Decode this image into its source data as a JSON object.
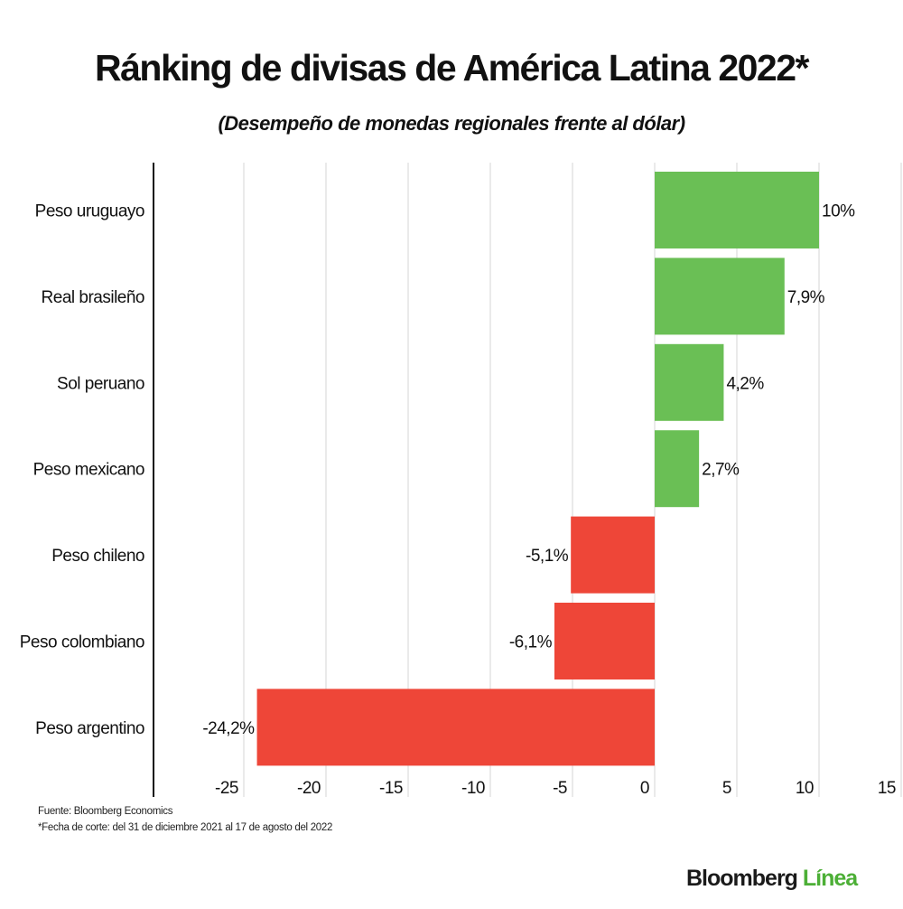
{
  "chart_data": {
    "type": "bar",
    "orientation": "horizontal",
    "title": "Ránking de divisas de América Latina 2022*",
    "subtitle": "(Desempeño de monedas regionales frente al dólar)",
    "categories": [
      "Peso uruguayo",
      "Real brasileño",
      "Sol peruano",
      "Peso mexicano",
      "Peso chileno",
      "Peso colombiano",
      "Peso argentino"
    ],
    "values": [
      10,
      7.9,
      4.2,
      2.7,
      -5.1,
      -6.1,
      -24.2
    ],
    "data_labels": [
      "10%",
      "7,9%",
      "4,2%",
      "2,7%",
      "-5,1%",
      "-6,1%",
      "-24,2%"
    ],
    "xlim": [
      -25,
      15
    ],
    "xticks": [
      -25,
      -20,
      -15,
      -10,
      -5,
      0,
      5,
      10,
      15
    ],
    "xtick_labels": [
      "-25",
      "-20",
      "-15",
      "-10",
      "-5",
      "0",
      "5",
      "10",
      "15"
    ],
    "grid": true,
    "colors": {
      "positive": "#6abf55",
      "negative": "#ee4638"
    }
  },
  "footer": {
    "source": "Fuente: Bloomberg Economics",
    "note": "*Fecha de corte: del 31 de diciembre 2021 al 17 de agosto del 2022"
  },
  "logo": {
    "brand": "Bloomberg",
    "sub": "Línea"
  }
}
